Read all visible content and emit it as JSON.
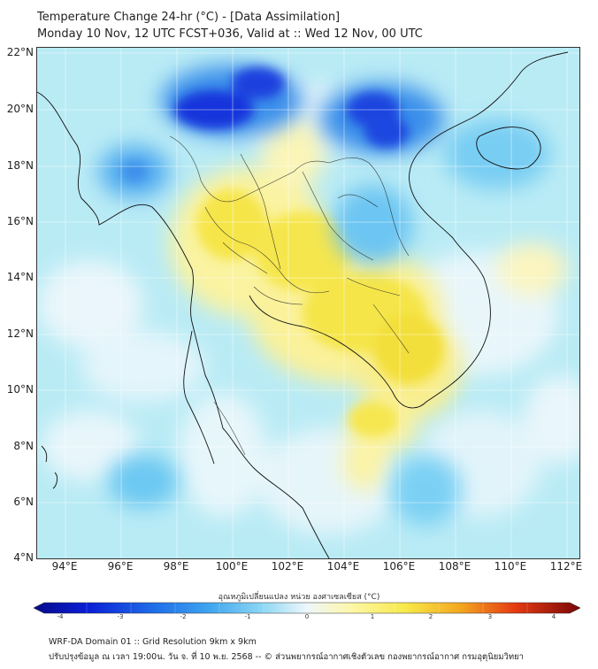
{
  "title": {
    "line1": "Temperature Change 24-hr (°C) - [Data Assimilation]",
    "line2": "Monday 10 Nov, 12 UTC FCST+036, Valid at :: Wed 12 Nov, 00 UTC"
  },
  "map": {
    "y_axis_labels": [
      "22°N",
      "20°N",
      "18°N",
      "16°N",
      "14°N",
      "12°N",
      "10°N",
      "8°N",
      "6°N",
      "4°N"
    ],
    "x_axis_labels": [
      "94°E",
      "96°E",
      "98°E",
      "100°E",
      "102°E",
      "104°E",
      "106°E",
      "108°E",
      "110°E",
      "112°E"
    ],
    "lat_range": [
      4,
      22
    ],
    "lon_range": [
      93,
      112.5
    ]
  },
  "colorbar": {
    "title": "อุณหภูมิเปลี่ยนแปลง หน่วย องศาเซลเซียส (°C)",
    "ticks": [
      "-4",
      "-3",
      "-2",
      "-1",
      "0",
      "1",
      "2",
      "3",
      "4"
    ],
    "range": [
      -4,
      4
    ]
  },
  "footer": {
    "line1": "WRF-DA Domain 01 :: Grid Resolution 9km x 9km",
    "line2": "ปรับปรุงข้อมูล ณ เวลา 19:00น. วัน จ. ที่ 10 พ.ย. 2568 -- © ส่วนพยากรณ์อากาศเชิงตัวเลข กองพยากรณ์อากาศ กรมอุตุนิยมวิทยา"
  },
  "colors": {
    "cold_dark": "#0a1fd6",
    "cold_mid": "#3fa4ef",
    "cold_light": "#b8ecf6",
    "neutral": "#eef7fb",
    "warm_light": "#fdf7a8",
    "warm_mid": "#f7e94a"
  }
}
